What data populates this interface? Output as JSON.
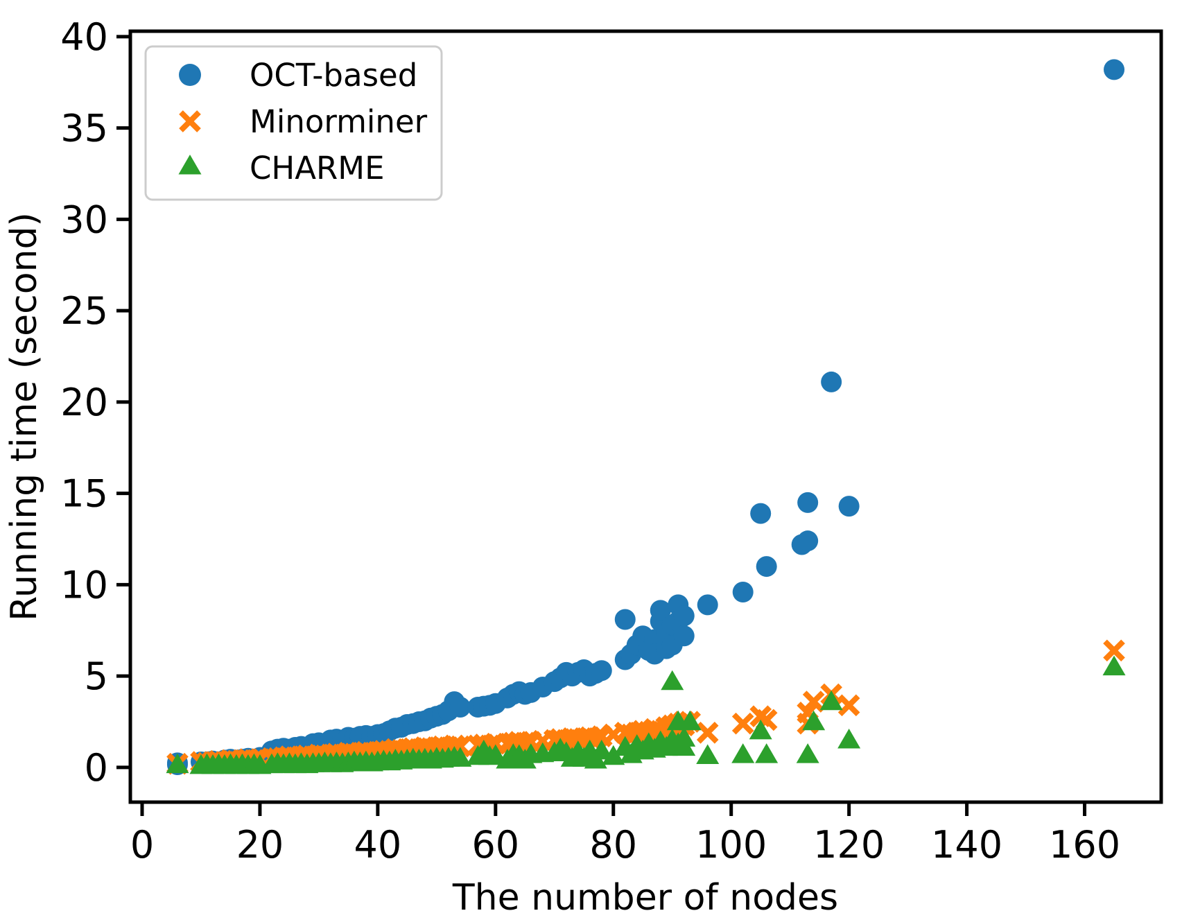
{
  "chart_data": {
    "type": "scatter",
    "title": "",
    "xlabel": "The number of nodes",
    "ylabel": "Running time (second)",
    "xlim": [
      -2,
      173
    ],
    "ylim": [
      -1.9,
      40.3
    ],
    "xticks": [
      0,
      20,
      40,
      60,
      80,
      100,
      120,
      140,
      160
    ],
    "yticks": [
      0,
      5,
      10,
      15,
      20,
      25,
      30,
      35,
      40
    ],
    "grid": false,
    "legend_position": "upper-left",
    "axis_color": "#000000",
    "legend_border_color": "#cccccc",
    "series": [
      {
        "name": "OCT-based",
        "marker": "circle",
        "color": "#1f77b4",
        "points": [
          [
            6,
            0.15
          ],
          [
            6,
            0.25
          ],
          [
            10,
            0.3
          ],
          [
            11,
            0.3
          ],
          [
            12,
            0.35
          ],
          [
            13,
            0.3
          ],
          [
            14,
            0.4
          ],
          [
            15,
            0.35
          ],
          [
            15,
            0.45
          ],
          [
            16,
            0.4
          ],
          [
            17,
            0.45
          ],
          [
            18,
            0.5
          ],
          [
            19,
            0.45
          ],
          [
            20,
            0.55
          ],
          [
            22,
            0.9
          ],
          [
            23,
            1.0
          ],
          [
            24,
            1.05
          ],
          [
            25,
            1.0
          ],
          [
            26,
            1.1
          ],
          [
            27,
            1.15
          ],
          [
            28,
            1.1
          ],
          [
            29,
            1.3
          ],
          [
            30,
            1.35
          ],
          [
            31,
            1.3
          ],
          [
            32,
            1.5
          ],
          [
            33,
            1.55
          ],
          [
            34,
            1.5
          ],
          [
            35,
            1.65
          ],
          [
            36,
            1.6
          ],
          [
            37,
            1.7
          ],
          [
            38,
            1.75
          ],
          [
            39,
            1.7
          ],
          [
            40,
            1.8
          ],
          [
            41,
            1.85
          ],
          [
            42,
            2.0
          ],
          [
            43,
            2.15
          ],
          [
            44,
            2.2
          ],
          [
            45,
            2.35
          ],
          [
            46,
            2.4
          ],
          [
            47,
            2.5
          ],
          [
            48,
            2.55
          ],
          [
            49,
            2.7
          ],
          [
            50,
            2.8
          ],
          [
            51,
            2.9
          ],
          [
            52,
            3.1
          ],
          [
            53,
            3.6
          ],
          [
            54,
            3.3
          ],
          [
            57,
            3.3
          ],
          [
            58,
            3.35
          ],
          [
            59,
            3.4
          ],
          [
            60,
            3.5
          ],
          [
            62,
            3.8
          ],
          [
            63,
            4.0
          ],
          [
            64,
            4.15
          ],
          [
            65,
            4.0
          ],
          [
            66,
            4.1
          ],
          [
            68,
            4.4
          ],
          [
            70,
            4.7
          ],
          [
            71,
            4.9
          ],
          [
            72,
            5.2
          ],
          [
            73,
            5.0
          ],
          [
            74,
            5.2
          ],
          [
            75,
            5.35
          ],
          [
            76,
            5.0
          ],
          [
            77,
            5.15
          ],
          [
            78,
            5.3
          ],
          [
            82,
            8.1
          ],
          [
            82,
            5.9
          ],
          [
            83,
            6.2
          ],
          [
            84,
            6.7
          ],
          [
            85,
            7.2
          ],
          [
            86,
            6.4
          ],
          [
            87,
            7.0
          ],
          [
            87,
            6.2
          ],
          [
            88,
            8.0
          ],
          [
            88,
            8.6
          ],
          [
            89,
            6.5
          ],
          [
            89,
            7.4
          ],
          [
            90,
            6.7
          ],
          [
            90,
            7.8
          ],
          [
            91,
            8.9
          ],
          [
            91,
            8.0
          ],
          [
            92,
            7.2
          ],
          [
            92,
            8.3
          ],
          [
            96,
            8.9
          ],
          [
            102,
            9.6
          ],
          [
            105,
            13.9
          ],
          [
            106,
            11.0
          ],
          [
            112,
            12.2
          ],
          [
            113,
            14.5
          ],
          [
            113,
            12.4
          ],
          [
            117,
            21.1
          ],
          [
            120,
            14.3
          ],
          [
            165,
            38.2
          ]
        ]
      },
      {
        "name": "Minorminer",
        "marker": "x",
        "color": "#ff7f0e",
        "points": [
          [
            6,
            0.2
          ],
          [
            10,
            0.3
          ],
          [
            11,
            0.25
          ],
          [
            12,
            0.3
          ],
          [
            13,
            0.35
          ],
          [
            14,
            0.3
          ],
          [
            15,
            0.4
          ],
          [
            16,
            0.35
          ],
          [
            17,
            0.4
          ],
          [
            18,
            0.45
          ],
          [
            19,
            0.4
          ],
          [
            20,
            0.45
          ],
          [
            22,
            0.5
          ],
          [
            23,
            0.5
          ],
          [
            24,
            0.55
          ],
          [
            25,
            0.6
          ],
          [
            26,
            0.55
          ],
          [
            27,
            0.6
          ],
          [
            28,
            0.65
          ],
          [
            29,
            0.6
          ],
          [
            30,
            0.7
          ],
          [
            31,
            0.65
          ],
          [
            32,
            0.7
          ],
          [
            33,
            0.75
          ],
          [
            34,
            0.7
          ],
          [
            35,
            0.8
          ],
          [
            36,
            0.75
          ],
          [
            37,
            0.8
          ],
          [
            38,
            0.85
          ],
          [
            39,
            0.8
          ],
          [
            40,
            0.85
          ],
          [
            41,
            0.9
          ],
          [
            42,
            0.9
          ],
          [
            43,
            1.0
          ],
          [
            44,
            0.95
          ],
          [
            45,
            1.0
          ],
          [
            46,
            1.05
          ],
          [
            47,
            1.0
          ],
          [
            48,
            1.1
          ],
          [
            49,
            1.05
          ],
          [
            50,
            1.1
          ],
          [
            51,
            1.15
          ],
          [
            52,
            1.1
          ],
          [
            53,
            1.2
          ],
          [
            54,
            1.15
          ],
          [
            57,
            1.2
          ],
          [
            58,
            1.25
          ],
          [
            59,
            1.2
          ],
          [
            60,
            1.3
          ],
          [
            62,
            1.3
          ],
          [
            63,
            1.35
          ],
          [
            64,
            1.4
          ],
          [
            65,
            1.35
          ],
          [
            66,
            1.4
          ],
          [
            68,
            1.45
          ],
          [
            70,
            1.5
          ],
          [
            71,
            1.55
          ],
          [
            72,
            1.5
          ],
          [
            73,
            1.6
          ],
          [
            74,
            1.55
          ],
          [
            75,
            1.6
          ],
          [
            76,
            1.65
          ],
          [
            77,
            1.6
          ],
          [
            78,
            1.7
          ],
          [
            80,
            1.8
          ],
          [
            82,
            1.9
          ],
          [
            83,
            1.8
          ],
          [
            84,
            1.9
          ],
          [
            85,
            2.0
          ],
          [
            86,
            1.95
          ],
          [
            87,
            2.1
          ],
          [
            88,
            2.0
          ],
          [
            89,
            2.2
          ],
          [
            90,
            2.3
          ],
          [
            90,
            2.1
          ],
          [
            91,
            2.4
          ],
          [
            91,
            2.2
          ],
          [
            92,
            2.5
          ],
          [
            92,
            2.3
          ],
          [
            93,
            2.5
          ],
          [
            96,
            1.9
          ],
          [
            102,
            2.4
          ],
          [
            105,
            2.8
          ],
          [
            106,
            2.6
          ],
          [
            113,
            3.0
          ],
          [
            113,
            2.4
          ],
          [
            114,
            3.6
          ],
          [
            117,
            4.0
          ],
          [
            120,
            3.4
          ],
          [
            165,
            6.4
          ]
        ]
      },
      {
        "name": "CHARME",
        "marker": "triangle-up",
        "color": "#2ca02c",
        "points": [
          [
            6,
            0.05
          ],
          [
            10,
            0.0
          ],
          [
            11,
            0.05
          ],
          [
            12,
            0.0
          ],
          [
            13,
            0.05
          ],
          [
            14,
            0.0
          ],
          [
            15,
            0.05
          ],
          [
            16,
            0.0
          ],
          [
            17,
            0.05
          ],
          [
            18,
            0.0
          ],
          [
            19,
            0.05
          ],
          [
            20,
            0.0
          ],
          [
            22,
            0.05
          ],
          [
            23,
            0.1
          ],
          [
            24,
            0.05
          ],
          [
            25,
            0.1
          ],
          [
            26,
            0.05
          ],
          [
            27,
            0.1
          ],
          [
            28,
            0.05
          ],
          [
            29,
            0.1
          ],
          [
            30,
            0.1
          ],
          [
            31,
            0.15
          ],
          [
            32,
            0.1
          ],
          [
            33,
            0.15
          ],
          [
            34,
            0.1
          ],
          [
            35,
            0.15
          ],
          [
            36,
            0.2
          ],
          [
            37,
            0.15
          ],
          [
            38,
            0.2
          ],
          [
            39,
            0.15
          ],
          [
            40,
            0.2
          ],
          [
            41,
            0.25
          ],
          [
            42,
            0.2
          ],
          [
            43,
            0.3
          ],
          [
            44,
            0.25
          ],
          [
            45,
            0.3
          ],
          [
            46,
            0.35
          ],
          [
            47,
            0.3
          ],
          [
            48,
            0.35
          ],
          [
            49,
            0.3
          ],
          [
            50,
            0.4
          ],
          [
            51,
            0.35
          ],
          [
            52,
            0.4
          ],
          [
            53,
            0.45
          ],
          [
            54,
            0.4
          ],
          [
            57,
            0.5
          ],
          [
            58,
            0.8
          ],
          [
            59,
            0.5
          ],
          [
            60,
            0.55
          ],
          [
            62,
            0.3
          ],
          [
            63,
            0.6
          ],
          [
            64,
            0.55
          ],
          [
            65,
            0.3
          ],
          [
            66,
            0.6
          ],
          [
            68,
            0.65
          ],
          [
            70,
            0.7
          ],
          [
            71,
            0.9
          ],
          [
            72,
            0.7
          ],
          [
            73,
            0.4
          ],
          [
            74,
            0.75
          ],
          [
            75,
            0.4
          ],
          [
            76,
            0.8
          ],
          [
            77,
            0.3
          ],
          [
            78,
            0.8
          ],
          [
            80,
            0.5
          ],
          [
            82,
            1.0
          ],
          [
            83,
            0.6
          ],
          [
            84,
            1.1
          ],
          [
            85,
            0.8
          ],
          [
            86,
            1.2
          ],
          [
            87,
            0.9
          ],
          [
            88,
            1.3
          ],
          [
            89,
            1.0
          ],
          [
            90,
            4.6
          ],
          [
            90,
            1.4
          ],
          [
            91,
            2.4
          ],
          [
            91,
            1.2
          ],
          [
            92,
            1.5
          ],
          [
            92,
            1.0
          ],
          [
            93,
            2.4
          ],
          [
            96,
            0.55
          ],
          [
            102,
            0.6
          ],
          [
            105,
            1.9
          ],
          [
            106,
            0.6
          ],
          [
            113,
            0.6
          ],
          [
            114,
            2.4
          ],
          [
            117,
            3.5
          ],
          [
            120,
            1.4
          ],
          [
            165,
            5.4
          ]
        ]
      }
    ]
  }
}
